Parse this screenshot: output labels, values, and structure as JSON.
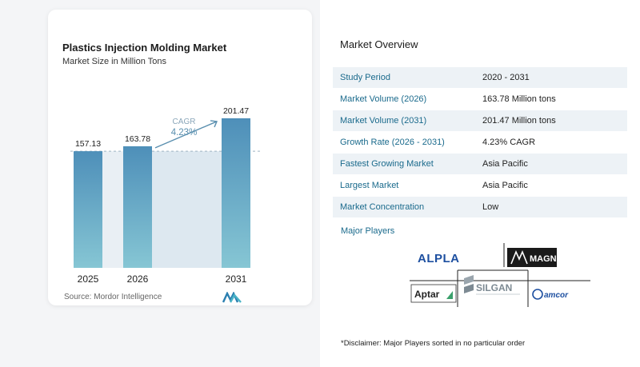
{
  "chart_card": {
    "title": "Plastics Injection Molding Market",
    "subtitle": "Market Size in Million Tons",
    "source": "Source:  Mordor Intelligence"
  },
  "chart_data": {
    "type": "bar",
    "title": "Plastics Injection Molding Market",
    "subtitle": "Market Size in Million Tons",
    "categories": [
      "2025",
      "2026",
      "2031"
    ],
    "values": [
      157.13,
      163.78,
      201.47
    ],
    "value_labels": [
      "157.13",
      "163.78",
      "201.47"
    ],
    "ylim": [
      0,
      210
    ],
    "annotation": {
      "label": "CAGR",
      "value": "4.23%"
    },
    "colors": {
      "bar_top": "#4e8fb9",
      "bar_bottom": "#86c6d4",
      "shade": "#dde8f0",
      "arrow": "#5a8faf",
      "cagr_text": "#5a8faf"
    }
  },
  "overview": {
    "title": "Market Overview",
    "rows": [
      {
        "label": "Study Period",
        "value": "2020 - 2031"
      },
      {
        "label": "Market Volume (2026)",
        "value": "163.78 Million tons"
      },
      {
        "label": "Market Volume (2031)",
        "value": "201.47 Million tons"
      },
      {
        "label": "Growth Rate (2026 - 2031)",
        "value": "4.23% CAGR"
      },
      {
        "label": "Fastest Growing Market",
        "value": "Asia Pacific"
      },
      {
        "label": "Largest Market",
        "value": "Asia Pacific"
      },
      {
        "label": "Market Concentration",
        "value": "Low"
      }
    ],
    "players_title": "Major Players",
    "players": [
      "ALPLA",
      "MAGNA",
      "Aptar",
      "SILGAN",
      "amcor"
    ],
    "disclaimer": "*Disclaimer: Major Players sorted in no particular order"
  }
}
